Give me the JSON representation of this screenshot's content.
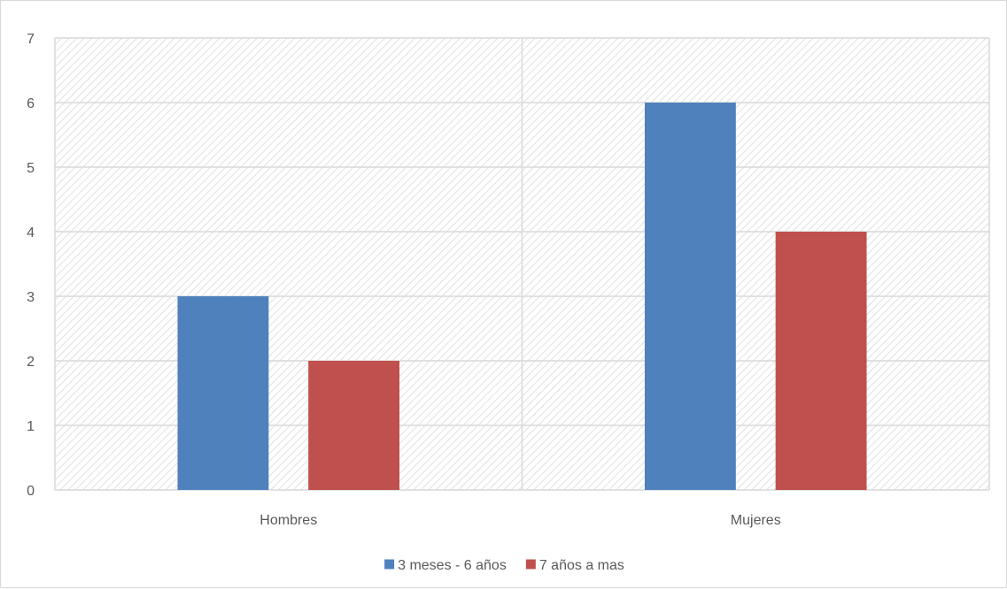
{
  "chart_data": {
    "type": "bar",
    "title": "",
    "xlabel": "",
    "ylabel": "",
    "categories": [
      "Hombres",
      "Mujeres"
    ],
    "series": [
      {
        "name": "3 meses - 6 años",
        "values": [
          3,
          6
        ],
        "color": "#4f81bd"
      },
      {
        "name": "7 años a mas",
        "values": [
          2,
          4
        ],
        "color": "#c0504d"
      }
    ],
    "ylim": [
      0,
      7
    ],
    "yticks": [
      0,
      1,
      2,
      3,
      4,
      5,
      6,
      7
    ],
    "grid": true,
    "plot_background": "hatched",
    "legend_position": "bottom"
  }
}
